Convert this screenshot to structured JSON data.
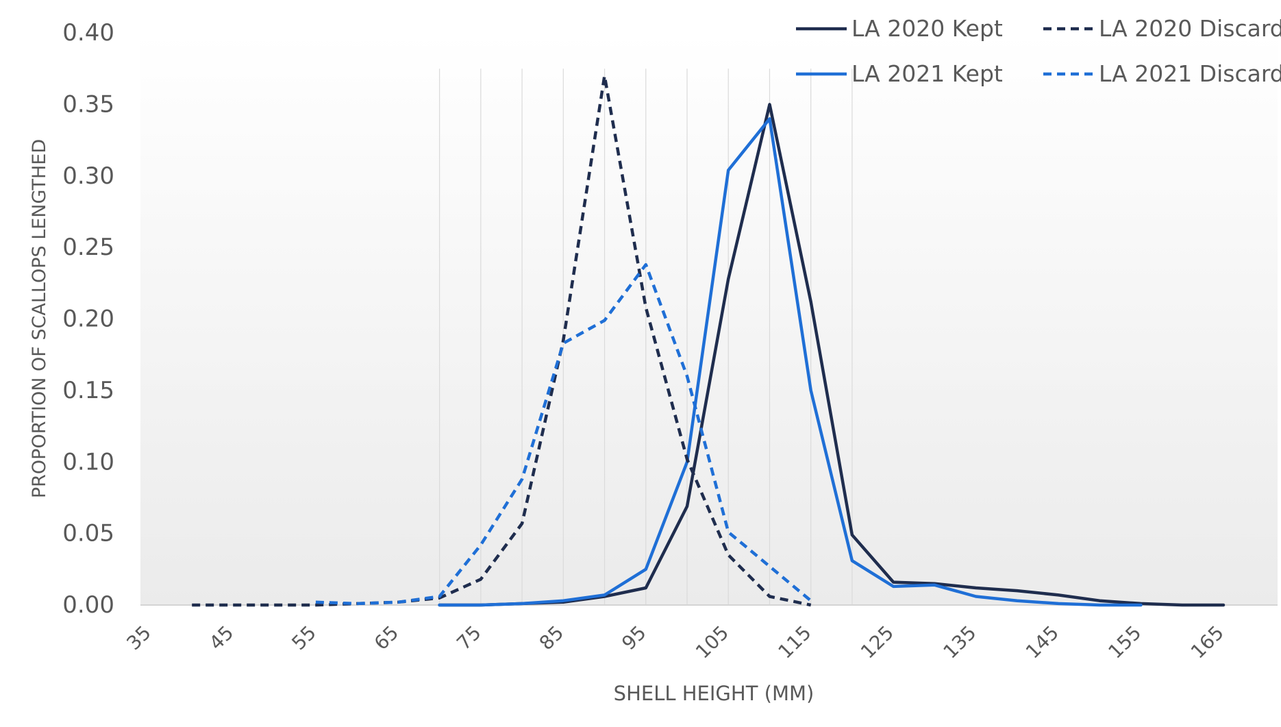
{
  "chart_data": {
    "type": "line",
    "title": "",
    "xlabel": "SHELL HEIGHT (MM)",
    "ylabel": "PROPORTION OF SCALLOPS LENGTHED",
    "x_tick_labels": [
      "35",
      "45",
      "55",
      "65",
      "75",
      "85",
      "95",
      "105",
      "115",
      "125",
      "135",
      "145",
      "155",
      "165"
    ],
    "y_tick_labels": [
      "0.00",
      "0.05",
      "0.10",
      "0.15",
      "0.20",
      "0.25",
      "0.30",
      "0.35",
      "0.40"
    ],
    "xlim": [
      35,
      165
    ],
    "ylim": [
      0,
      0.4
    ],
    "grid": "vertical minor lines at data points",
    "legend_placement": "top-right",
    "series": [
      {
        "name": "LA 2020 Kept",
        "color": "#1f2d4e",
        "dash": "solid",
        "x": [
          70,
          75,
          80,
          85,
          90,
          95,
          100,
          105,
          110,
          115,
          120,
          125,
          130,
          135,
          140,
          145,
          150,
          155,
          160,
          165
        ],
        "y": [
          0.0,
          0.0,
          0.001,
          0.002,
          0.006,
          0.012,
          0.069,
          0.228,
          0.35,
          0.212,
          0.049,
          0.016,
          0.015,
          0.012,
          0.01,
          0.007,
          0.003,
          0.001,
          0.0,
          0.0
        ]
      },
      {
        "name": "LA 2021 Kept",
        "color": "#1f6fd6",
        "dash": "solid",
        "x": [
          70,
          75,
          80,
          85,
          90,
          95,
          100,
          105,
          110,
          115,
          120,
          125,
          130,
          135,
          140,
          145,
          150,
          155
        ],
        "y": [
          0.0,
          0.0,
          0.001,
          0.003,
          0.007,
          0.025,
          0.1,
          0.304,
          0.34,
          0.15,
          0.031,
          0.013,
          0.014,
          0.006,
          0.003,
          0.001,
          0.0,
          0.0
        ]
      },
      {
        "name": "LA 2020 Discard",
        "color": "#1f2d4e",
        "dash": "dashed",
        "x": [
          40,
          45,
          50,
          55,
          60,
          65,
          70,
          75,
          80,
          85,
          90,
          95,
          100,
          105,
          110,
          115
        ],
        "y": [
          0.0,
          0.0,
          0.0,
          0.0,
          0.001,
          0.002,
          0.005,
          0.018,
          0.057,
          0.185,
          0.37,
          0.208,
          0.102,
          0.035,
          0.006,
          0.0
        ]
      },
      {
        "name": "LA 2021 Discard",
        "color": "#1f6fd6",
        "dash": "dashed",
        "x": [
          55,
          60,
          65,
          70,
          75,
          80,
          85,
          90,
          95,
          100,
          105,
          110,
          115
        ],
        "y": [
          0.002,
          0.001,
          0.002,
          0.006,
          0.042,
          0.088,
          0.183,
          0.199,
          0.238,
          0.16,
          0.051,
          0.027,
          0.003
        ]
      }
    ]
  }
}
